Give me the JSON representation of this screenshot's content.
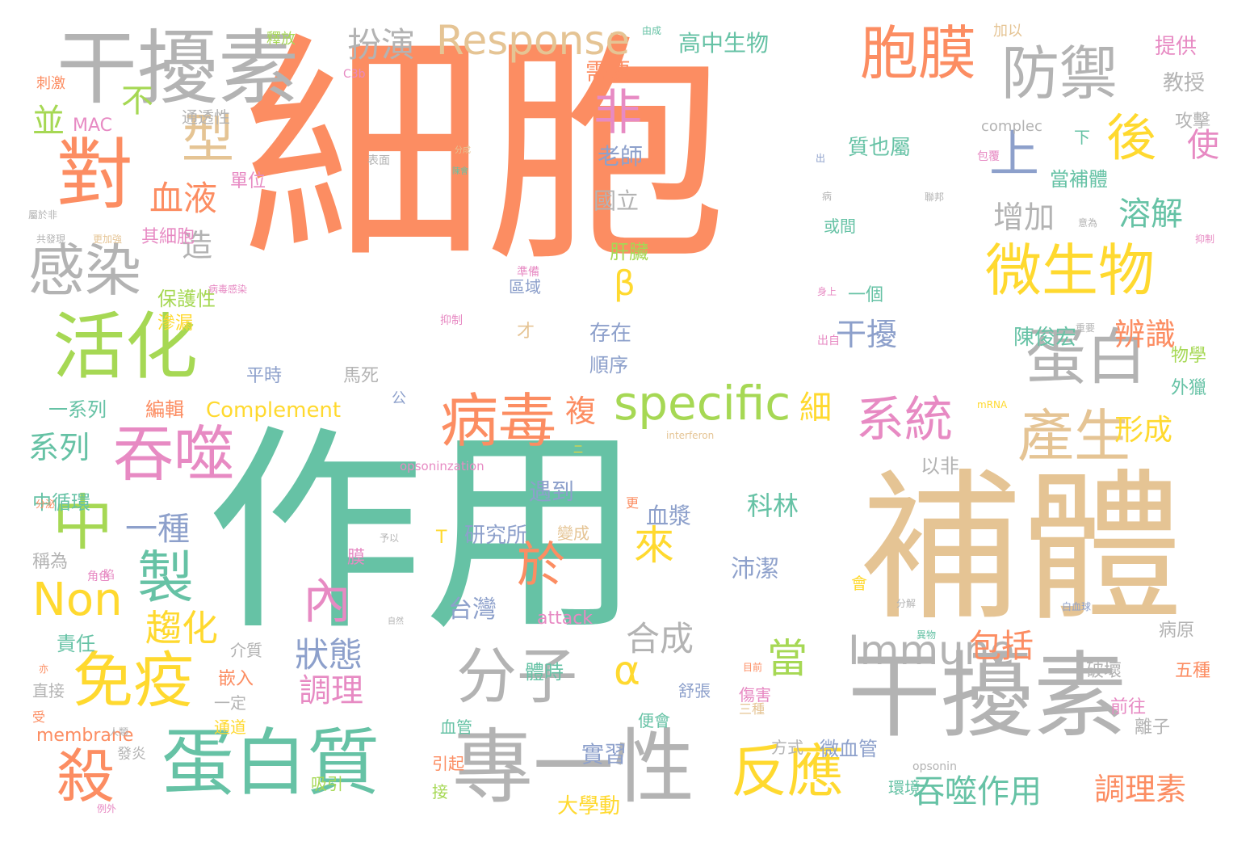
{
  "palette": {
    "orange": "#fc8d62",
    "teal": "#66c2a5",
    "gray": "#b3b3b3",
    "tan": "#e5c494",
    "lime": "#a6d854",
    "pink": "#e78ac3",
    "blue": "#8da0cb",
    "yellow": "#ffd92f"
  },
  "words": [
    {
      "text": "細胞",
      "color": "orange"
    },
    {
      "text": "作用",
      "color": "teal"
    },
    {
      "text": "補體",
      "color": "tan"
    },
    {
      "text": "干擾素",
      "color": "gray"
    },
    {
      "text": "專一性",
      "color": "gray"
    },
    {
      "text": "蛋白質",
      "color": "teal"
    },
    {
      "text": "干擾素",
      "color": "gray"
    },
    {
      "text": "活化",
      "color": "lime"
    },
    {
      "text": "對",
      "color": "orange"
    },
    {
      "text": "胞膜",
      "color": "orange"
    },
    {
      "text": "防禦",
      "color": "gray"
    },
    {
      "text": "微生物",
      "color": "yellow"
    },
    {
      "text": "蛋白",
      "color": "gray"
    },
    {
      "text": "病毒",
      "color": "orange"
    },
    {
      "text": "吞噬",
      "color": "pink"
    },
    {
      "text": "免疫",
      "color": "yellow"
    },
    {
      "text": "分子",
      "color": "gray"
    },
    {
      "text": "反應",
      "color": "yellow"
    },
    {
      "text": "產生",
      "color": "tan"
    },
    {
      "text": "系統",
      "color": "pink"
    },
    {
      "text": "specific",
      "color": "lime"
    },
    {
      "text": "Immune",
      "color": "gray"
    },
    {
      "text": "Response",
      "color": "tan"
    },
    {
      "text": "感染",
      "color": "gray"
    },
    {
      "text": "Non",
      "color": "yellow"
    },
    {
      "text": "中",
      "color": "lime"
    },
    {
      "text": "殺",
      "color": "orange"
    },
    {
      "text": "型",
      "color": "tan"
    },
    {
      "text": "後",
      "color": "yellow"
    },
    {
      "text": "上",
      "color": "blue"
    },
    {
      "text": "非",
      "color": "pink"
    },
    {
      "text": "於",
      "color": "orange"
    },
    {
      "text": "內",
      "color": "pink"
    },
    {
      "text": "製",
      "color": "teal"
    },
    {
      "text": "來",
      "color": "yellow"
    },
    {
      "text": "α",
      "color": "yellow"
    },
    {
      "text": "β",
      "color": "yellow"
    },
    {
      "text": "吞噬作用",
      "color": "teal"
    },
    {
      "text": "調理素",
      "color": "orange"
    },
    {
      "text": "包括",
      "color": "orange"
    },
    {
      "text": "趨化",
      "color": "yellow"
    },
    {
      "text": "狀態",
      "color": "blue"
    },
    {
      "text": "調理",
      "color": "pink"
    },
    {
      "text": "合成",
      "color": "gray"
    },
    {
      "text": "當",
      "color": "lime"
    },
    {
      "text": "扮演",
      "color": "gray"
    },
    {
      "text": "血液",
      "color": "orange"
    },
    {
      "text": "不",
      "color": "lime"
    },
    {
      "text": "並",
      "color": "lime"
    },
    {
      "text": "造",
      "color": "gray"
    },
    {
      "text": "系列",
      "color": "teal"
    },
    {
      "text": "一種",
      "color": "blue"
    },
    {
      "text": "溶解",
      "color": "teal"
    },
    {
      "text": "增加",
      "color": "gray"
    },
    {
      "text": "辨識",
      "color": "orange"
    },
    {
      "text": "形成",
      "color": "yellow"
    },
    {
      "text": "使",
      "color": "pink"
    },
    {
      "text": "干擾",
      "color": "blue"
    },
    {
      "text": "複",
      "color": "orange"
    },
    {
      "text": "細",
      "color": "yellow"
    },
    {
      "text": "高中生物",
      "color": "teal"
    },
    {
      "text": "需要",
      "color": "orange"
    },
    {
      "text": "老師",
      "color": "blue"
    },
    {
      "text": "國立",
      "color": "gray"
    },
    {
      "text": "肝臟",
      "color": "lime"
    },
    {
      "text": "存在",
      "color": "blue"
    },
    {
      "text": "順序",
      "color": "blue"
    },
    {
      "text": "陳俊宏",
      "color": "teal"
    },
    {
      "text": "質也屬",
      "color": "teal"
    },
    {
      "text": "當補體",
      "color": "teal"
    },
    {
      "text": "提供",
      "color": "pink"
    },
    {
      "text": "教授",
      "color": "gray"
    },
    {
      "text": "攻擊",
      "color": "gray"
    },
    {
      "text": "物學",
      "color": "lime"
    },
    {
      "text": "外獵",
      "color": "teal"
    },
    {
      "text": "血漿",
      "color": "blue"
    },
    {
      "text": "科林",
      "color": "teal"
    },
    {
      "text": "沛潔",
      "color": "blue"
    },
    {
      "text": "台灣",
      "color": "blue"
    },
    {
      "text": "研究所",
      "color": "blue"
    },
    {
      "text": "遇到",
      "color": "blue"
    },
    {
      "text": "以非",
      "color": "gray"
    },
    {
      "text": "方式",
      "color": "gray"
    },
    {
      "text": "微血管",
      "color": "blue"
    },
    {
      "text": "實習",
      "color": "blue"
    },
    {
      "text": "大學動",
      "color": "yellow"
    },
    {
      "text": "環境",
      "color": "teal"
    },
    {
      "text": "破壞",
      "color": "gray"
    },
    {
      "text": "前往",
      "color": "pink"
    },
    {
      "text": "離子",
      "color": "gray"
    },
    {
      "text": "五種",
      "color": "orange"
    },
    {
      "text": "病原",
      "color": "gray"
    },
    {
      "text": "Complement",
      "color": "yellow"
    },
    {
      "text": "membrane",
      "color": "orange"
    },
    {
      "text": "attack",
      "color": "pink"
    },
    {
      "text": "保護性",
      "color": "lime"
    },
    {
      "text": "滲漏",
      "color": "yellow"
    },
    {
      "text": "其細胞",
      "color": "pink"
    },
    {
      "text": "單位",
      "color": "pink"
    },
    {
      "text": "通透性",
      "color": "gray"
    },
    {
      "text": "MAC",
      "color": "pink"
    },
    {
      "text": "刺激",
      "color": "orange"
    },
    {
      "text": "釋放",
      "color": "lime"
    },
    {
      "text": "C3b",
      "color": "pink"
    },
    {
      "text": "平時",
      "color": "blue"
    },
    {
      "text": "馬死",
      "color": "gray"
    },
    {
      "text": "編輯",
      "color": "orange"
    },
    {
      "text": "一系列",
      "color": "teal"
    },
    {
      "text": "中循環",
      "color": "teal"
    },
    {
      "text": "稱為",
      "color": "gray"
    },
    {
      "text": "責任",
      "color": "teal"
    },
    {
      "text": "介質",
      "color": "gray"
    },
    {
      "text": "嵌入",
      "color": "orange"
    },
    {
      "text": "直接",
      "color": "gray"
    },
    {
      "text": "一定",
      "color": "gray"
    },
    {
      "text": "通道",
      "color": "yellow"
    },
    {
      "text": "發炎",
      "color": "gray"
    },
    {
      "text": "吸引",
      "color": "lime"
    },
    {
      "text": "引起",
      "color": "orange"
    },
    {
      "text": "接",
      "color": "lime"
    },
    {
      "text": "血管",
      "color": "teal"
    },
    {
      "text": "便會",
      "color": "teal"
    },
    {
      "text": "傷害",
      "color": "pink"
    },
    {
      "text": "舒張",
      "color": "blue"
    },
    {
      "text": "體時",
      "color": "teal"
    },
    {
      "text": "膜",
      "color": "pink"
    },
    {
      "text": "變成",
      "color": "tan"
    },
    {
      "text": "區域",
      "color": "blue"
    },
    {
      "text": "才",
      "color": "tan"
    },
    {
      "text": "一個",
      "color": "teal"
    },
    {
      "text": "或間",
      "color": "teal"
    },
    {
      "text": "下",
      "color": "teal"
    },
    {
      "text": "complec",
      "color": "gray"
    },
    {
      "text": "opsonin",
      "color": "gray"
    },
    {
      "text": "interferon",
      "color": "tan"
    },
    {
      "text": "opsoninzation",
      "color": "pink"
    },
    {
      "text": "表面",
      "color": "gray"
    },
    {
      "text": "公",
      "color": "blue"
    },
    {
      "text": "T",
      "color": "yellow"
    },
    {
      "text": "加以",
      "color": "tan"
    },
    {
      "text": "包覆",
      "color": "pink"
    },
    {
      "text": "分解",
      "color": "gray"
    },
    {
      "text": "異物",
      "color": "teal"
    },
    {
      "text": "會",
      "color": "yellow"
    },
    {
      "text": "出",
      "color": "blue"
    },
    {
      "text": "二",
      "color": "yellow"
    },
    {
      "text": "分成",
      "color": "tan"
    },
    {
      "text": "陳會",
      "color": "teal"
    },
    {
      "text": "意為",
      "color": "gray"
    },
    {
      "text": "聯邦",
      "color": "gray"
    },
    {
      "text": "抑制",
      "color": "pink"
    },
    {
      "text": "重要",
      "color": "gray"
    },
    {
      "text": "病",
      "color": "gray"
    },
    {
      "text": "角色",
      "color": "pink"
    },
    {
      "text": "陷",
      "color": "pink"
    },
    {
      "text": "予以",
      "color": "gray"
    },
    {
      "text": "自然",
      "color": "gray"
    },
    {
      "text": "分泌",
      "color": "orange"
    },
    {
      "text": "亦",
      "color": "orange"
    },
    {
      "text": "受",
      "color": "orange"
    },
    {
      "text": "更",
      "color": "orange"
    },
    {
      "text": "三種",
      "color": "tan"
    },
    {
      "text": "目前",
      "color": "orange"
    },
    {
      "text": "屬於非",
      "color": "gray"
    },
    {
      "text": "共發現",
      "color": "gray"
    },
    {
      "text": "更加強",
      "color": "tan"
    },
    {
      "text": "病毒感染",
      "color": "pink"
    },
    {
      "text": "例外",
      "color": "pink"
    },
    {
      "text": "人類",
      "color": "gray"
    },
    {
      "text": "由成",
      "color": "teal"
    },
    {
      "text": "身上",
      "color": "pink"
    },
    {
      "text": "準備",
      "color": "pink"
    },
    {
      "text": "抑制",
      "color": "pink"
    },
    {
      "text": "出自",
      "color": "pink"
    },
    {
      "text": "mRNA",
      "color": "yellow"
    },
    {
      "text": "白血球",
      "color": "blue"
    }
  ]
}
